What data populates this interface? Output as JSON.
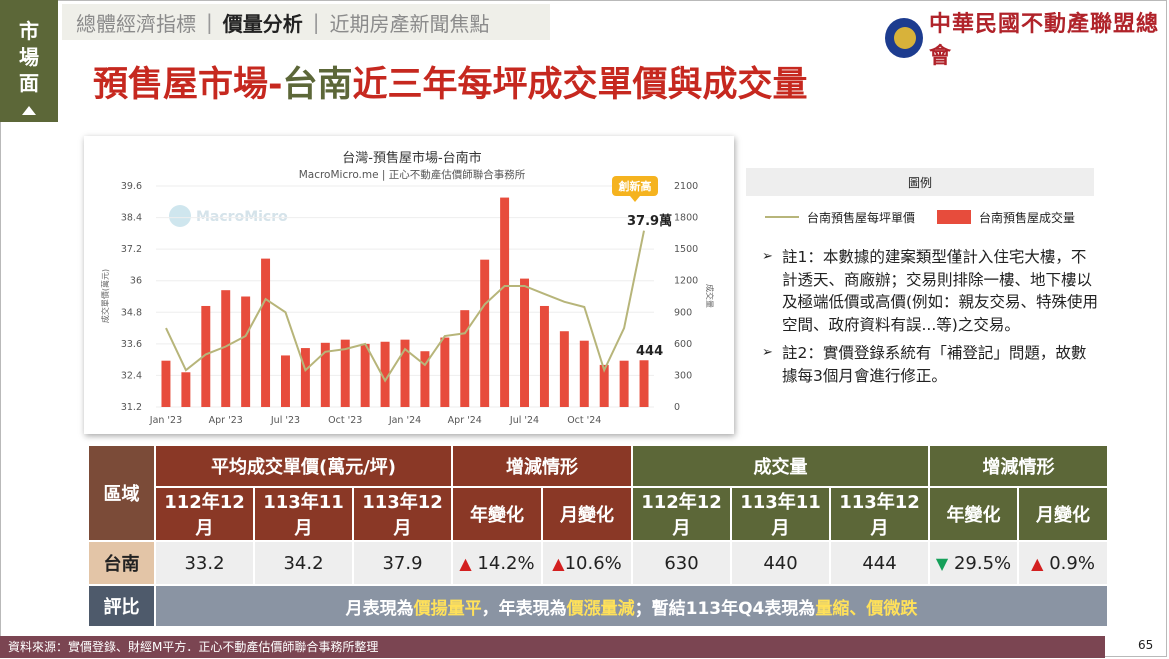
{
  "side_tab": {
    "chars": [
      "市",
      "場",
      "面"
    ]
  },
  "nav": {
    "tabs": [
      {
        "label": "總體經濟指標"
      },
      {
        "label": "價量分析"
      },
      {
        "label": "近期房產新聞焦點"
      }
    ]
  },
  "logo": {
    "text": "中華民國不動產聯盟總會"
  },
  "title": {
    "part1": "預售屋市場-",
    "part2": "台南",
    "part3": "近三年每坪成交單價與成交量"
  },
  "chart": {
    "title": "台灣-預售屋市場-台南市",
    "subtitle": "MacroMicro.me | 正心不動產估價師聯合事務所",
    "watermark": "MacroMicro",
    "left_axis_label": "成交單價(萬元)",
    "right_axis_label": "成交量",
    "badge": "創新高",
    "annot_price": "37.9萬",
    "annot_volume": "444"
  },
  "chart_data": {
    "type": "bar",
    "x_tick_labels": [
      "Jan '23",
      "Apr '23",
      "Jul '23",
      "Oct '23",
      "Jan '24",
      "Apr '24",
      "Jul '24",
      "Oct '24"
    ],
    "left_ticks": [
      "31.2",
      "32.4",
      "33.6",
      "34.8",
      "36",
      "37.2",
      "38.4",
      "39.6"
    ],
    "right_ticks": [
      "0",
      "300",
      "600",
      "900",
      "1200",
      "1500",
      "1800",
      "2100"
    ],
    "ylim_left": [
      31.2,
      39.6
    ],
    "ylim_right": [
      0,
      2100
    ],
    "colors": {
      "bars": "#e74c3c",
      "line": "#b7b57a"
    },
    "series": [
      {
        "name": "台南預售屋成交量",
        "axis": "right",
        "kind": "bar",
        "values": [
          440,
          330,
          960,
          1110,
          1050,
          1410,
          490,
          560,
          610,
          640,
          600,
          620,
          640,
          530,
          660,
          920,
          1400,
          1990,
          1220,
          960,
          720,
          630,
          400,
          440,
          444
        ]
      },
      {
        "name": "台南預售屋每坪單價",
        "axis": "left",
        "kind": "line",
        "values": [
          34.2,
          32.6,
          33.2,
          33.5,
          33.9,
          35.3,
          34.8,
          32.6,
          33.3,
          33.4,
          33.6,
          32.2,
          33.4,
          32.8,
          33.9,
          34.0,
          35.1,
          35.8,
          35.8,
          35.5,
          35.2,
          35.0,
          32.6,
          34.2,
          37.9
        ]
      }
    ]
  },
  "legend": {
    "title": "圖例",
    "line_label": "台南預售屋每坪單價",
    "bar_label": "台南預售屋成交量"
  },
  "notes": [
    {
      "mark": "➢",
      "text": "註1：本數據的建案類型僅計入住宅大樓，不計透天、商廠辦；交易則排除一樓、地下樓以及極端低價或高價(例如：親友交易、特殊使用空間、政府資料有誤...等)之交易。"
    },
    {
      "mark": "➢",
      "text": "註2：實價登錄系統有「補登記」問題，故數據每3個月會進行修正。"
    }
  ],
  "table": {
    "region_header": "區域",
    "price_header": "平均成交單價(萬元/坪)",
    "change_header_1": "增減情形",
    "volume_header": "成交量",
    "change_header_2": "增減情形",
    "sub_headers": [
      "112年12月",
      "113年11月",
      "113年12月",
      "年變化",
      "月變化",
      "112年12月",
      "113年11月",
      "113年12月",
      "年變化",
      "月變化"
    ],
    "row": {
      "name": "台南",
      "price_112_12": "33.2",
      "price_113_11": "34.2",
      "price_113_12": "37.9",
      "price_yoy": "14.2%",
      "price_mom": "10.6%",
      "vol_112_12": "630",
      "vol_113_11": "440",
      "vol_113_12": "444",
      "vol_yoy": "29.5%",
      "vol_mom": "0.9%"
    },
    "eval_label": "評比",
    "eval": {
      "p1": "月表現為",
      "h1": "價揚量平",
      "p2": "，年表現為",
      "h2": "價漲量減",
      "p3": "；暫結113年Q4表現為",
      "h3": "量縮、價微跌"
    }
  },
  "footer": {
    "source": "資料來源：實價登錄、財經M平方．正心不動產估價師聯合事務所整理"
  },
  "page_number": "65"
}
